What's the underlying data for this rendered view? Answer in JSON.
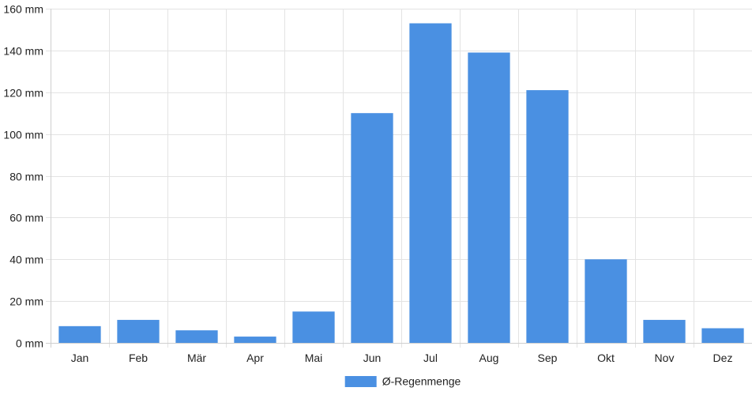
{
  "chart_data": {
    "type": "bar",
    "categories": [
      "Jan",
      "Feb",
      "Mär",
      "Apr",
      "Mai",
      "Jun",
      "Jul",
      "Aug",
      "Sep",
      "Okt",
      "Nov",
      "Dez"
    ],
    "series": [
      {
        "name": "Ø-Regenmenge",
        "values": [
          8,
          11,
          6,
          3,
          15,
          110,
          153,
          139,
          121,
          40,
          11,
          7
        ],
        "color": "#4a90e2"
      }
    ],
    "yunit": "mm",
    "ylim": [
      0,
      160
    ],
    "yticks": [
      0,
      20,
      40,
      60,
      80,
      100,
      120,
      140,
      160
    ],
    "ytick_labels": [
      "0 mm",
      "20 mm",
      "40 mm",
      "60 mm",
      "80 mm",
      "100 mm",
      "120 mm",
      "140 mm",
      "160 mm"
    ],
    "grid": true,
    "legend_position": "bottom"
  }
}
